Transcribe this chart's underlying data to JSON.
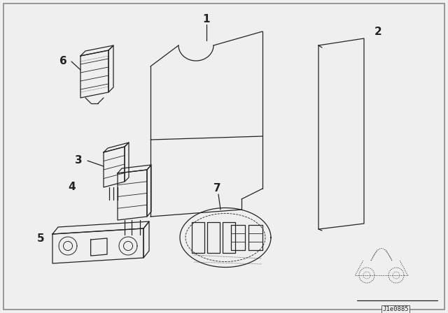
{
  "bg_color": "#efefef",
  "line_color": "#222222",
  "label_color": "#111111",
  "watermark": "J1e0885",
  "fig_w": 6.4,
  "fig_h": 4.48,
  "dpi": 100
}
